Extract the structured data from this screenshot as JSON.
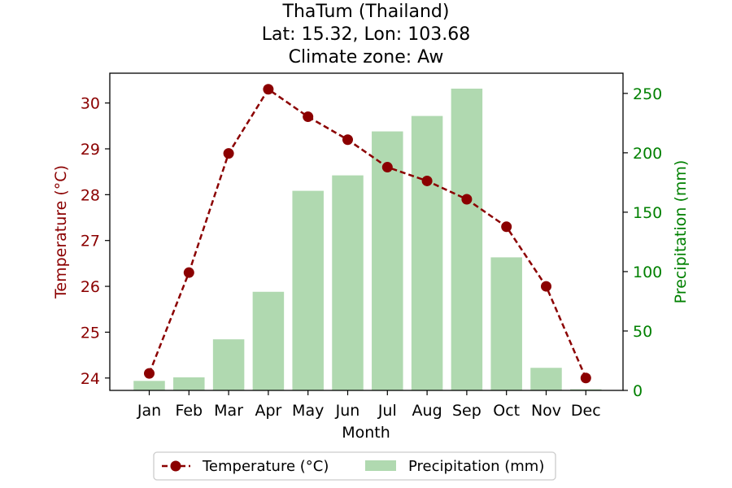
{
  "chart_data": {
    "type": "bar",
    "title_lines": [
      "ThaTum (Thailand)",
      "Lat: 15.32, Lon: 103.68",
      "Climate zone: Aw"
    ],
    "xlabel": "Month",
    "ylabel_left": "Temperature (°C)",
    "ylabel_right": "Precipitation (mm)",
    "categories": [
      "Jan",
      "Feb",
      "Mar",
      "Apr",
      "May",
      "Jun",
      "Jul",
      "Aug",
      "Sep",
      "Oct",
      "Nov",
      "Dec"
    ],
    "series": [
      {
        "name": "Temperature (°C)",
        "type": "line",
        "axis": "left",
        "values": [
          24.1,
          26.3,
          28.9,
          30.3,
          29.7,
          29.2,
          28.6,
          28.3,
          27.9,
          27.3,
          26.0,
          24.0
        ]
      },
      {
        "name": "Precipitation (mm)",
        "type": "bar",
        "axis": "right",
        "values": [
          8,
          11,
          43,
          83,
          168,
          181,
          218,
          231,
          254,
          112,
          19,
          1
        ]
      }
    ],
    "ylim_left": [
      23.73,
      30.65
    ],
    "ylim_right": [
      0,
      267
    ],
    "yticks_left": [
      "24",
      "25",
      "26",
      "27",
      "28",
      "29",
      "30"
    ],
    "yticks_right": [
      "0",
      "50",
      "100",
      "150",
      "200",
      "250"
    ],
    "legend_position": "bottom-center",
    "grid": false,
    "colors": {
      "temperature": "#8b0000",
      "temperature_label": "#8b0000",
      "precipitation": "#b0d9b0",
      "precipitation_label": "#008000"
    }
  }
}
